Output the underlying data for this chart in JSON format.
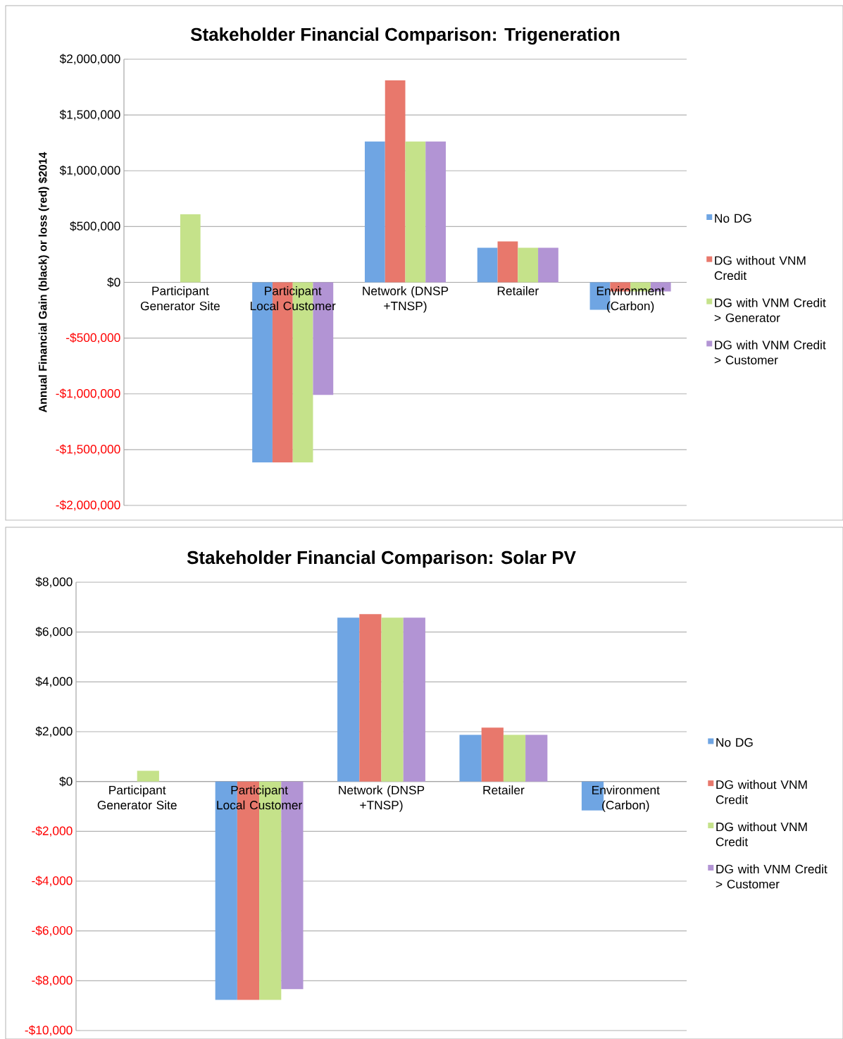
{
  "chart_data": [
    {
      "type": "bar",
      "title": "Stakeholder Financial Comparison: Trigeneration",
      "ylabel": "Annual Financial Gain (black) or loss (red) $2014",
      "categories": [
        "Participant Generator Site",
        "Participant Local Customer",
        "Network (DNSP +TNSP)",
        "Retailer",
        "Environment (Carbon)"
      ],
      "series": [
        {
          "name": "No DG",
          "color": "#6fa5e3",
          "values": [
            0,
            -1615000,
            1262000,
            310000,
            -246000
          ]
        },
        {
          "name": "DG without VNM Credit",
          "color": "#e8786c",
          "values": [
            0,
            -1615000,
            1810000,
            366000,
            -82000
          ]
        },
        {
          "name": "DG with VNM Credit > Generator",
          "color": "#c5e28a",
          "values": [
            610000,
            -1615000,
            1262000,
            310000,
            -82000
          ]
        },
        {
          "name": "DG with VNM Credit > Customer",
          "color": "#b294d4",
          "values": [
            0,
            -1010000,
            1262000,
            310000,
            -82000
          ]
        }
      ],
      "ylim": [
        -2000000,
        2000000
      ],
      "yticks": [
        {
          "value": -2000000,
          "label": "-$2,000,000"
        },
        {
          "value": -1500000,
          "label": "-$1,500,000"
        },
        {
          "value": -1000000,
          "label": "-$1,000,000"
        },
        {
          "value": -500000,
          "label": "-$500,000"
        },
        {
          "value": 0,
          "label": "$0"
        },
        {
          "value": 500000,
          "label": "$500,000"
        },
        {
          "value": 1000000,
          "label": "$1,000,000"
        },
        {
          "value": 1500000,
          "label": "$1,500,000"
        },
        {
          "value": 2000000,
          "label": "$2,000,000"
        }
      ],
      "grid": "y",
      "legend": "right"
    },
    {
      "type": "bar",
      "title": "Stakeholder Financial Comparison: Solar PV",
      "categories": [
        "Participant Generator Site",
        "Participant Local Customer",
        "Network (DNSP +TNSP)",
        "Retailer",
        "Environment (Carbon)"
      ],
      "series": [
        {
          "name": "No DG",
          "color": "#6fa5e3",
          "values": [
            0,
            -8770,
            6580,
            1870,
            -1160
          ]
        },
        {
          "name": "DG without VNM Credit",
          "color": "#e8786c",
          "values": [
            0,
            -8770,
            6720,
            2160,
            0
          ]
        },
        {
          "name": "DG without VNM Credit",
          "color": "#c5e28a",
          "values": [
            430,
            -8770,
            6580,
            1870,
            0
          ]
        },
        {
          "name": "DG with VNM Credit > Customer",
          "color": "#b294d4",
          "values": [
            0,
            -8340,
            6580,
            1870,
            0
          ]
        }
      ],
      "ylim": [
        -10000,
        8000
      ],
      "yticks": [
        {
          "value": -10000,
          "label": "-$10,000"
        },
        {
          "value": -8000,
          "label": "-$8,000"
        },
        {
          "value": -6000,
          "label": "-$6,000"
        },
        {
          "value": -4000,
          "label": "-$4,000"
        },
        {
          "value": -2000,
          "label": "-$2,000"
        },
        {
          "value": 0,
          "label": "$0"
        },
        {
          "value": 2000,
          "label": "$2,000"
        },
        {
          "value": 4000,
          "label": "$4,000"
        },
        {
          "value": 6000,
          "label": "$6,000"
        },
        {
          "value": 8000,
          "label": "$8,000"
        }
      ],
      "grid": "y",
      "legend": "right"
    }
  ]
}
